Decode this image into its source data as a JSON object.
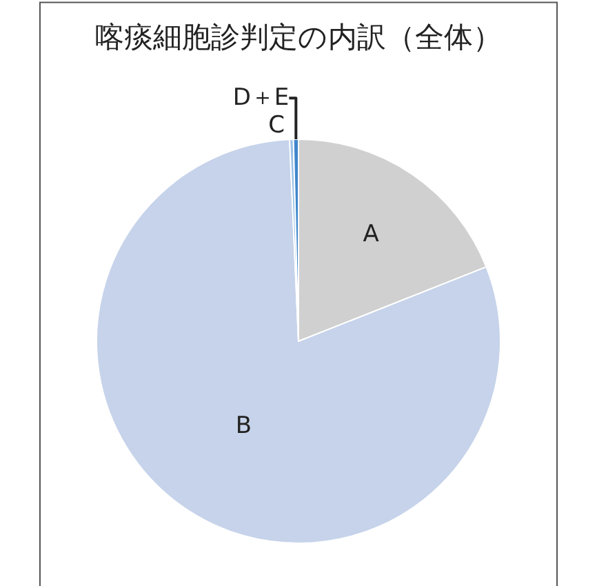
{
  "chart_data": {
    "type": "pie",
    "title": "喀痰細胞診判定の内訳（全体）",
    "categories": [
      "A",
      "B",
      "C",
      "D＋E"
    ],
    "values": [
      19,
      80.3,
      0.3,
      0.4
    ],
    "colors": [
      "#d0d0d0",
      "#c6d3ea",
      "#9cc2e6",
      "#3f86cc"
    ],
    "legend": false
  }
}
